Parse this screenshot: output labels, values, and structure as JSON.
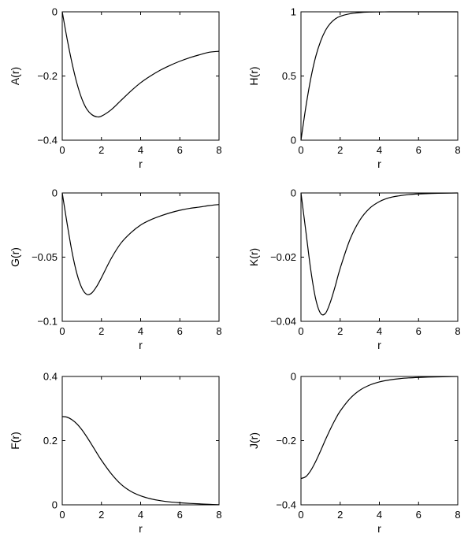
{
  "chart_data": [
    {
      "type": "line",
      "xlabel": "r",
      "ylabel": "A(r)",
      "xlim": [
        0,
        8
      ],
      "ylim": [
        -0.4,
        0
      ],
      "xticks": [
        "0",
        "2",
        "4",
        "6",
        "8"
      ],
      "yticks": [
        "-0.4",
        "-0.2",
        "0"
      ],
      "grid": false,
      "series": [
        {
          "x": [
            0,
            0.25,
            0.5,
            0.75,
            1,
            1.25,
            1.5,
            1.75,
            2,
            2.5,
            3,
            3.5,
            4,
            4.5,
            5,
            5.5,
            6,
            6.5,
            7,
            7.5,
            8
          ],
          "y": [
            0,
            -0.085,
            -0.16,
            -0.223,
            -0.271,
            -0.303,
            -0.32,
            -0.327,
            -0.325,
            -0.305,
            -0.276,
            -0.247,
            -0.221,
            -0.2,
            -0.182,
            -0.167,
            -0.154,
            -0.143,
            -0.134,
            -0.126,
            -0.123
          ]
        }
      ]
    },
    {
      "type": "line",
      "xlabel": "r",
      "ylabel": "H(r)",
      "xlim": [
        0,
        8
      ],
      "ylim": [
        0,
        1
      ],
      "xticks": [
        "0",
        "2",
        "4",
        "6",
        "8"
      ],
      "yticks": [
        "0",
        "0.5",
        "1"
      ],
      "grid": false,
      "series": [
        {
          "x": [
            0,
            0.25,
            0.5,
            0.75,
            1,
            1.25,
            1.5,
            1.75,
            2,
            2.5,
            3,
            3.5,
            4,
            4.5,
            5,
            6,
            7,
            8
          ],
          "y": [
            0,
            0.26,
            0.48,
            0.65,
            0.77,
            0.855,
            0.91,
            0.945,
            0.965,
            0.985,
            0.994,
            0.998,
            0.999,
            1,
            1,
            1,
            1,
            1
          ]
        }
      ]
    },
    {
      "type": "line",
      "xlabel": "r",
      "ylabel": "G(r)",
      "xlim": [
        0,
        8
      ],
      "ylim": [
        -0.1,
        0
      ],
      "xticks": [
        "0",
        "2",
        "4",
        "6",
        "8"
      ],
      "yticks": [
        "-0.1",
        "-0.05",
        "0"
      ],
      "grid": false,
      "series": [
        {
          "x": [
            0,
            0.25,
            0.5,
            0.75,
            1,
            1.25,
            1.5,
            1.75,
            2,
            2.5,
            3,
            3.5,
            4,
            4.5,
            5,
            5.5,
            6,
            6.5,
            7,
            7.5,
            8
          ],
          "y": [
            0,
            -0.024,
            -0.046,
            -0.063,
            -0.074,
            -0.079,
            -0.078,
            -0.073,
            -0.066,
            -0.051,
            -0.039,
            -0.031,
            -0.025,
            -0.021,
            -0.018,
            -0.0155,
            -0.0135,
            -0.012,
            -0.011,
            -0.0098,
            -0.009
          ]
        }
      ]
    },
    {
      "type": "line",
      "xlabel": "r",
      "ylabel": "K(r)",
      "xlim": [
        0,
        8
      ],
      "ylim": [
        -0.04,
        0
      ],
      "xticks": [
        "0",
        "2",
        "4",
        "6",
        "8"
      ],
      "yticks": [
        "-0.04",
        "-0.02",
        "0"
      ],
      "grid": false,
      "series": [
        {
          "x": [
            0,
            0.25,
            0.5,
            0.75,
            1,
            1.25,
            1.5,
            1.75,
            2,
            2.5,
            3,
            3.5,
            4,
            4.5,
            5,
            5.5,
            6,
            7,
            8
          ],
          "y": [
            0,
            -0.012,
            -0.024,
            -0.033,
            -0.0375,
            -0.0375,
            -0.034,
            -0.029,
            -0.0235,
            -0.0145,
            -0.0085,
            -0.0048,
            -0.0027,
            -0.0015,
            -0.0009,
            -0.0005,
            -0.0003,
            -0.0001,
            0
          ]
        }
      ]
    },
    {
      "type": "line",
      "xlabel": "r",
      "ylabel": "F(r)",
      "xlim": [
        0,
        8
      ],
      "ylim": [
        0,
        0.4
      ],
      "xticks": [
        "0",
        "2",
        "4",
        "6",
        "8"
      ],
      "yticks": [
        "0",
        "0.2",
        "0.4"
      ],
      "grid": false,
      "series": [
        {
          "x": [
            0,
            0.25,
            0.5,
            0.75,
            1,
            1.25,
            1.5,
            1.75,
            2,
            2.5,
            3,
            3.5,
            4,
            4.5,
            5,
            5.5,
            6,
            6.5,
            7,
            7.5,
            8
          ],
          "y": [
            0.275,
            0.273,
            0.265,
            0.252,
            0.234,
            0.212,
            0.188,
            0.163,
            0.139,
            0.097,
            0.064,
            0.042,
            0.028,
            0.019,
            0.013,
            0.009,
            0.0065,
            0.0045,
            0.003,
            0.0015,
            0.0005
          ]
        }
      ]
    },
    {
      "type": "line",
      "xlabel": "r",
      "ylabel": "J(r)",
      "xlim": [
        0,
        8
      ],
      "ylim": [
        -0.4,
        0
      ],
      "xticks": [
        "0",
        "2",
        "4",
        "6",
        "8"
      ],
      "yticks": [
        "-0.4",
        "-0.2",
        "0"
      ],
      "grid": false,
      "series": [
        {
          "x": [
            0,
            0.25,
            0.5,
            0.75,
            1,
            1.25,
            1.5,
            1.75,
            2,
            2.5,
            3,
            3.5,
            4,
            4.5,
            5,
            5.5,
            6,
            6.5,
            7,
            7.5,
            8
          ],
          "y": [
            -0.318,
            -0.312,
            -0.293,
            -0.265,
            -0.232,
            -0.197,
            -0.164,
            -0.134,
            -0.108,
            -0.069,
            -0.043,
            -0.027,
            -0.017,
            -0.011,
            -0.007,
            -0.0045,
            -0.003,
            -0.002,
            -0.0012,
            -0.0006,
            -0.0002
          ]
        }
      ]
    }
  ]
}
